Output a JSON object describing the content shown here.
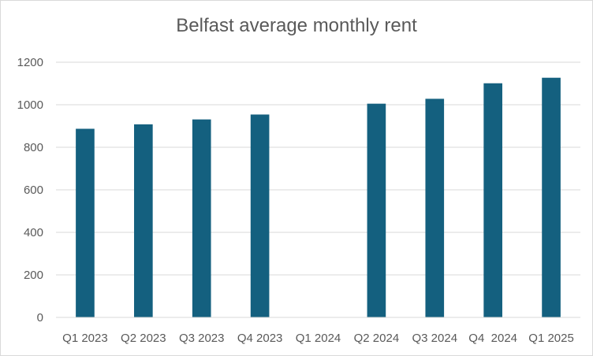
{
  "chart_data": {
    "type": "bar",
    "title": "Belfast average monthly rent",
    "xlabel": "",
    "ylabel": "",
    "categories": [
      "Q1 2023",
      "Q2 2023",
      "Q3 2023",
      "Q4 2023",
      "Q1 2024",
      "Q2 2024",
      "Q3 2024",
      "Q4  2024",
      "Q1 2025"
    ],
    "values": [
      887,
      908,
      931,
      954,
      null,
      1005,
      1028,
      1101,
      1127
    ],
    "ylim": [
      0,
      1200
    ],
    "yticks": [
      0,
      200,
      400,
      600,
      800,
      1000,
      1200
    ],
    "grid": true,
    "legend": "none",
    "colors": {
      "bar": "#14607f",
      "grid": "#d9d9d9",
      "text": "#595959"
    }
  }
}
